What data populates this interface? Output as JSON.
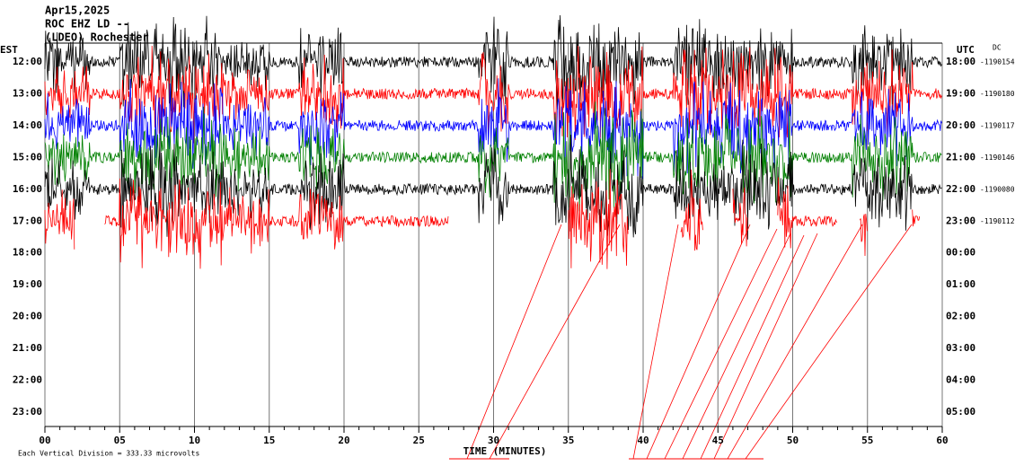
{
  "header": {
    "date": "Apr15,2025",
    "station": "ROC EHZ LD --",
    "network": "(LDEO) Rochester"
  },
  "left_axis": {
    "title": "EST",
    "labels": [
      "12:00",
      "13:00",
      "14:00",
      "15:00",
      "16:00",
      "17:00",
      "18:00",
      "19:00",
      "20:00",
      "21:00",
      "22:00",
      "23:00"
    ]
  },
  "right_axis": {
    "title": "UTC",
    "dc_label": "DC",
    "labels": [
      "18:00",
      "19:00",
      "20:00",
      "21:00",
      "22:00",
      "23:00",
      "00:00",
      "01:00",
      "02:00",
      "03:00",
      "04:00",
      "05:00"
    ],
    "offsets": [
      "-1190154",
      "-1190180",
      "-1190117",
      "-1190146",
      "-1190080",
      "-1190112"
    ]
  },
  "x_axis": {
    "title": "TIME (MINUTES)",
    "labels": [
      "00",
      "05",
      "10",
      "15",
      "20",
      "25",
      "30",
      "35",
      "40",
      "45",
      "50",
      "55",
      "60"
    ]
  },
  "footer": "Each Vertical Division =  333.33 microvolts"
}
